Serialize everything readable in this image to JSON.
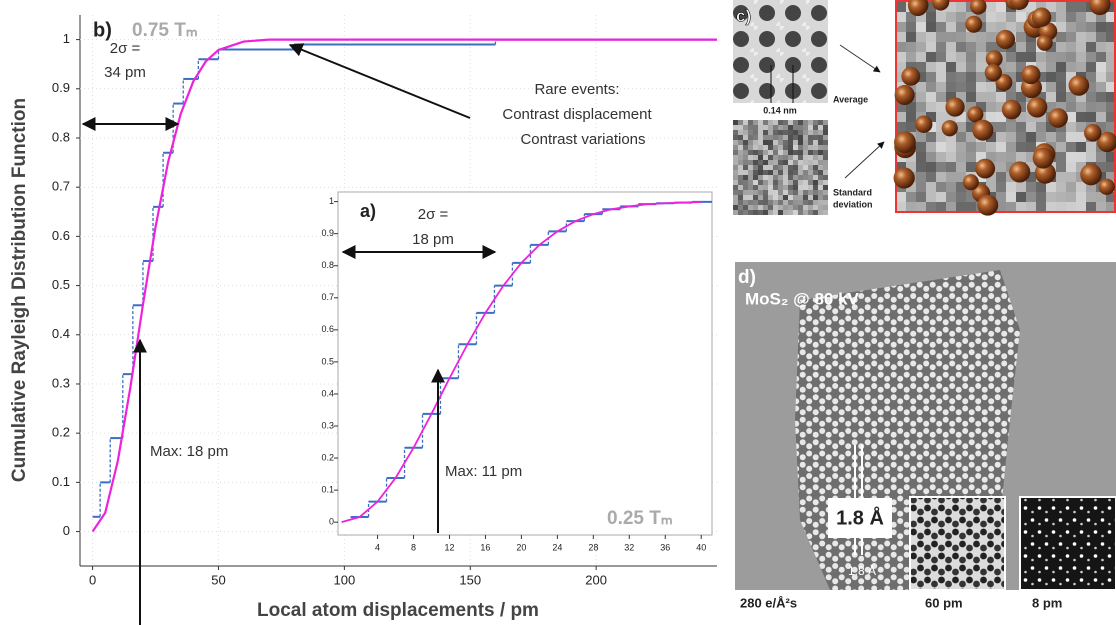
{
  "chart_data": [
    {
      "type": "line",
      "panel": "b)",
      "subtitle": "0.75 Tₘ",
      "x_label": "Local atom displacements / pm",
      "y_label": "Cumulative Rayleigh Distribution Function",
      "xlim": [
        -5,
        248
      ],
      "ylim": [
        -0.07,
        1.05
      ],
      "xticks": [
        0,
        50,
        100,
        150,
        200
      ],
      "yticks": [
        0,
        0.1,
        0.2,
        0.3,
        0.4,
        0.5,
        0.6,
        0.7,
        0.8,
        0.9,
        1
      ],
      "series": [
        {
          "style": "step",
          "color": "#3a6fc4",
          "x": [
            0,
            3,
            7,
            12,
            16,
            20,
            24,
            28,
            32,
            36,
            42,
            50,
            80,
            160
          ],
          "values": [
            0.03,
            0.1,
            0.19,
            0.32,
            0.46,
            0.55,
            0.66,
            0.77,
            0.87,
            0.92,
            0.96,
            0.98,
            0.99,
            1
          ]
        },
        {
          "style": "line",
          "color": "#ee22dd",
          "x": [
            0,
            5,
            10,
            15,
            20,
            25,
            30,
            35,
            40,
            45,
            50,
            60,
            70,
            248
          ],
          "values": [
            0,
            0.038,
            0.143,
            0.293,
            0.461,
            0.619,
            0.751,
            0.849,
            0.915,
            0.956,
            0.979,
            0.996,
            1,
            1
          ]
        }
      ],
      "annotations": {
        "sigma": "2σ =",
        "sigma_value": "34 pm",
        "rare": "Rare events:",
        "rare_1": "Contrast displacement",
        "rare_2": "Contrast variations",
        "max": "Max: 18 pm"
      }
    },
    {
      "type": "line",
      "panel": "a)",
      "subtitle": "0.25 Tₘ",
      "xlim": [
        -0.4,
        41.2
      ],
      "ylim": [
        -0.04,
        1.03
      ],
      "xticks": [
        4,
        8,
        12,
        16,
        20,
        24,
        28,
        32,
        36,
        40
      ],
      "yticks": [
        0,
        0.1,
        0.2,
        0.3,
        0.4,
        0.5,
        0.6,
        0.7,
        0.8,
        0.9,
        1
      ],
      "series": [
        {
          "style": "step",
          "color": "#3a6fc4",
          "x": [
            1,
            3,
            5,
            7,
            9,
            11,
            13,
            15,
            17,
            19,
            21,
            23,
            25,
            27,
            29,
            31,
            33,
            35,
            37,
            39
          ],
          "values": [
            0.016,
            0.064,
            0.138,
            0.232,
            0.338,
            0.449,
            0.555,
            0.653,
            0.738,
            0.809,
            0.865,
            0.907,
            0.939,
            0.961,
            0.976,
            0.985,
            0.992,
            0.995,
            0.997,
            0.999
          ]
        },
        {
          "style": "line",
          "color": "#ee22dd",
          "x": [
            0,
            2,
            4,
            6,
            8,
            10,
            12,
            14,
            16,
            18,
            20,
            22,
            24,
            26,
            28,
            30,
            32,
            34,
            36,
            38,
            40
          ],
          "values": [
            0,
            0.016,
            0.064,
            0.138,
            0.232,
            0.338,
            0.449,
            0.555,
            0.653,
            0.738,
            0.809,
            0.865,
            0.907,
            0.939,
            0.961,
            0.976,
            0.985,
            0.992,
            0.995,
            0.997,
            0.999
          ]
        }
      ],
      "annotations": {
        "sigma": "2σ =",
        "sigma_value": "18 pm",
        "max": "Max: 11 pm"
      }
    }
  ],
  "figure_panels": {
    "c": {
      "label": "c)",
      "scale": "0.14 nm",
      "average": "Average",
      "std_1": "Standard",
      "std_2": "deviation"
    },
    "d": {
      "label": "d)",
      "title": "MoS₂ @ 80 kV",
      "scale_box": "1.8 Å",
      "scale_small": "1.8 Å",
      "dose": "280 e/Å²s",
      "inset_1": "60 pm",
      "inset_2": "8 pm"
    }
  }
}
